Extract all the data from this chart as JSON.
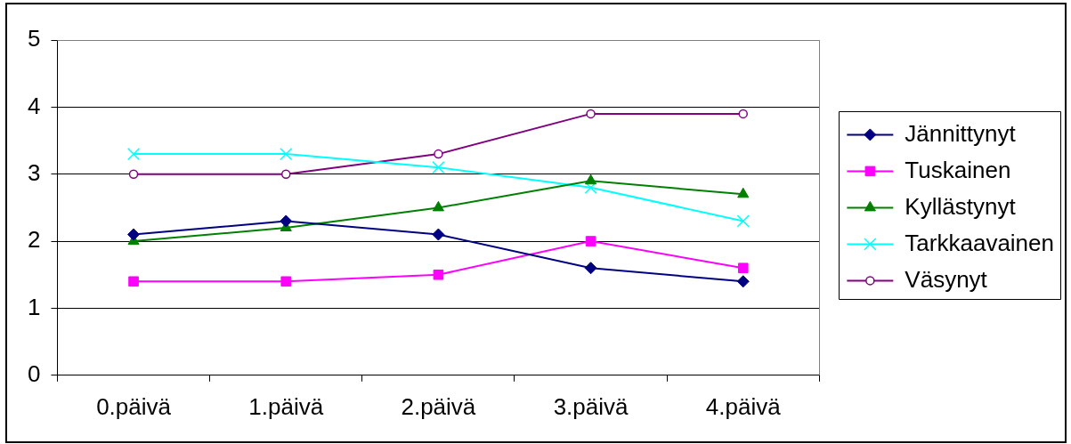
{
  "chart_data": {
    "type": "line",
    "categories": [
      "0.päivä",
      "1.päivä",
      "2.päivä",
      "3.päivä",
      "4.päivä"
    ],
    "series": [
      {
        "name": "Jännittynyt",
        "color": "#000080",
        "marker": "diamond",
        "values": [
          2.1,
          2.3,
          2.1,
          1.6,
          1.4
        ]
      },
      {
        "name": "Tuskainen",
        "color": "#ff00ff",
        "marker": "square",
        "values": [
          1.4,
          1.4,
          1.5,
          2.0,
          1.6
        ]
      },
      {
        "name": "Kyllästynyt",
        "color": "#008000",
        "marker": "triangle",
        "values": [
          2.0,
          2.2,
          2.5,
          2.9,
          2.7
        ]
      },
      {
        "name": "Tarkkaavainen",
        "color": "#00ffff",
        "marker": "cross",
        "values": [
          3.3,
          3.3,
          3.1,
          2.8,
          2.3
        ]
      },
      {
        "name": "Väsynyt",
        "color": "#800080",
        "marker": "circle",
        "values": [
          3.0,
          3.0,
          3.3,
          3.9,
          3.9
        ]
      }
    ],
    "ylim": [
      0,
      5
    ],
    "yticks": [
      0,
      1,
      2,
      3,
      4,
      5
    ],
    "grid": "y",
    "legend": "right",
    "line_style": "solid"
  }
}
